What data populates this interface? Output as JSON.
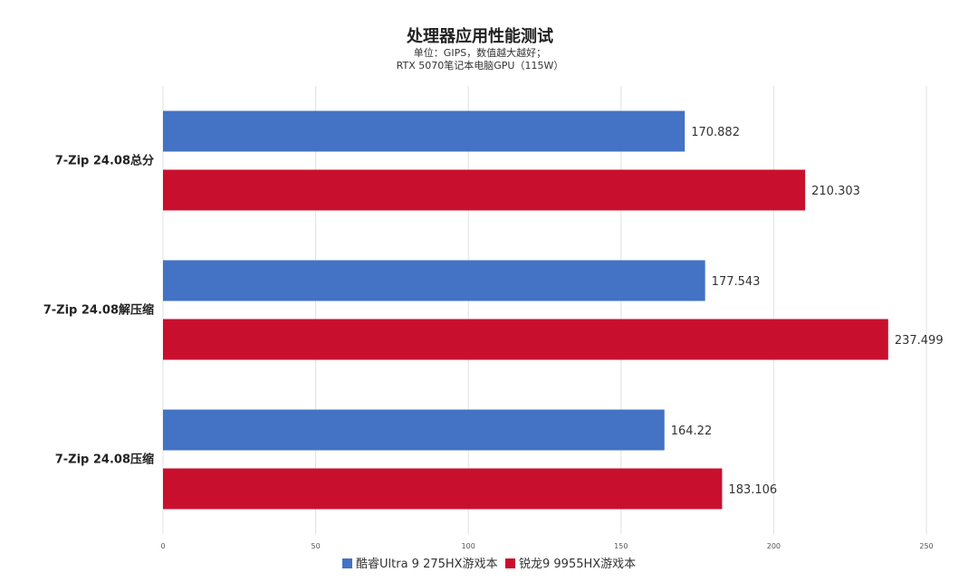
{
  "chart_data": {
    "type": "bar",
    "orientation": "horizontal",
    "title": "处理器应用性能测试",
    "subtitle_lines": [
      "单位：GIPS，数值越大越好；",
      "RTX 5070笔记本电脑GPU（115W）"
    ],
    "categories": [
      "7-Zip 24.08总分",
      "7-Zip 24.08解压缩",
      "7-Zip 24.08压缩"
    ],
    "series": [
      {
        "name": "酷睿Ultra 9 275HX游戏本",
        "color": "#4472c4",
        "values": [
          170.882,
          177.543,
          164.22
        ],
        "labels": [
          "170.882",
          "177.543",
          "164.22"
        ]
      },
      {
        "name": "锐龙9 9955HX游戏本",
        "color": "#c8102e",
        "values": [
          210.303,
          237.499,
          183.106
        ],
        "labels": [
          "210.303",
          "237.499",
          "183.106"
        ]
      }
    ],
    "xlim": [
      0,
      250
    ],
    "xticks": [
      0,
      50,
      100,
      150,
      200,
      250
    ],
    "grid": true,
    "legend": "bottom"
  }
}
